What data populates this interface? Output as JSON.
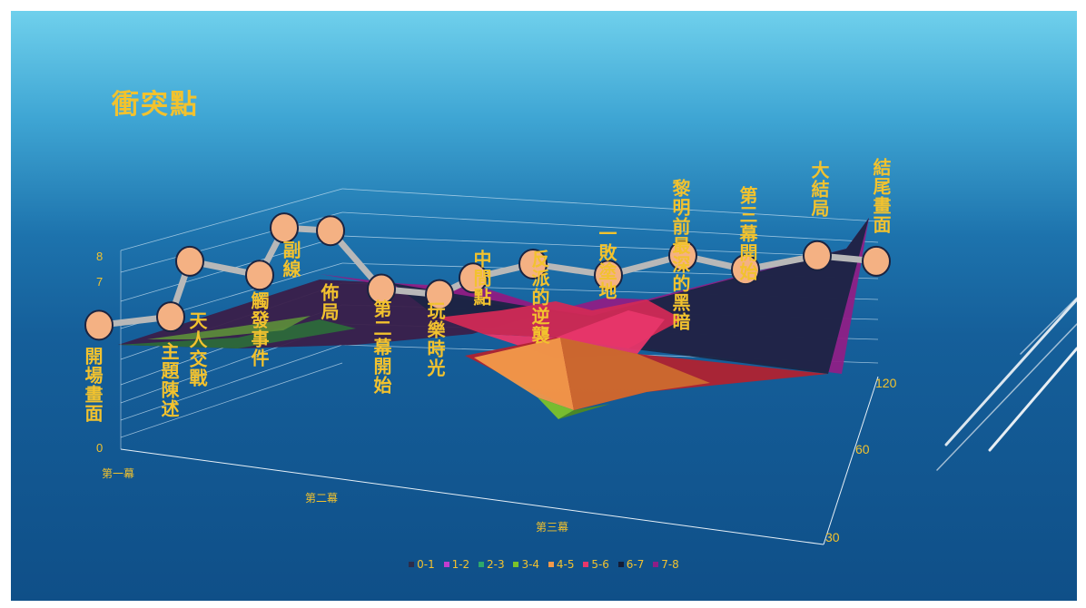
{
  "title": "衝突點",
  "chart_data": {
    "type": "surface_with_line",
    "title": "衝突點",
    "points": [
      {
        "label": "開場畫面",
        "value": 4.3
      },
      {
        "label": "主題陳述",
        "value": 4.6
      },
      {
        "label": "天人交戰",
        "value": 6.6
      },
      {
        "label": "觸發事件",
        "value": 6.1
      },
      {
        "label": "副線",
        "value": 7.8
      },
      {
        "label": "佈局",
        "value": 7.7
      },
      {
        "label": "第二幕開始",
        "value": 5.6
      },
      {
        "label": "玩樂時光",
        "value": 5.4
      },
      {
        "label": "中間點",
        "value": 6.0
      },
      {
        "label": "反派的逆襲",
        "value": 6.5
      },
      {
        "label": "一敗塗地",
        "value": 6.1
      },
      {
        "label": "黎明前最深的黑暗",
        "value": 6.8
      },
      {
        "label": "第三幕開始",
        "value": 6.3
      },
      {
        "label": "大結局",
        "value": 6.8
      },
      {
        "label": "結尾畫面",
        "value": 6.6
      }
    ],
    "z_axis_ticks": [
      "0",
      "7",
      "8"
    ],
    "x_axis_categories": [
      "第一幕",
      "第二幕",
      "第三幕"
    ],
    "y_axis_ticks": [
      "30",
      "60",
      "120"
    ],
    "legend": [
      {
        "label": "0-1",
        "color": "#2c2c4a"
      },
      {
        "label": "1-2",
        "color": "#c23ccf"
      },
      {
        "label": "2-3",
        "color": "#2fa86a"
      },
      {
        "label": "3-4",
        "color": "#7cc22a"
      },
      {
        "label": "4-5",
        "color": "#f2994a"
      },
      {
        "label": "5-6",
        "color": "#e8366a"
      },
      {
        "label": "6-7",
        "color": "#141c36"
      },
      {
        "label": "7-8",
        "color": "#8e1f86"
      }
    ]
  }
}
